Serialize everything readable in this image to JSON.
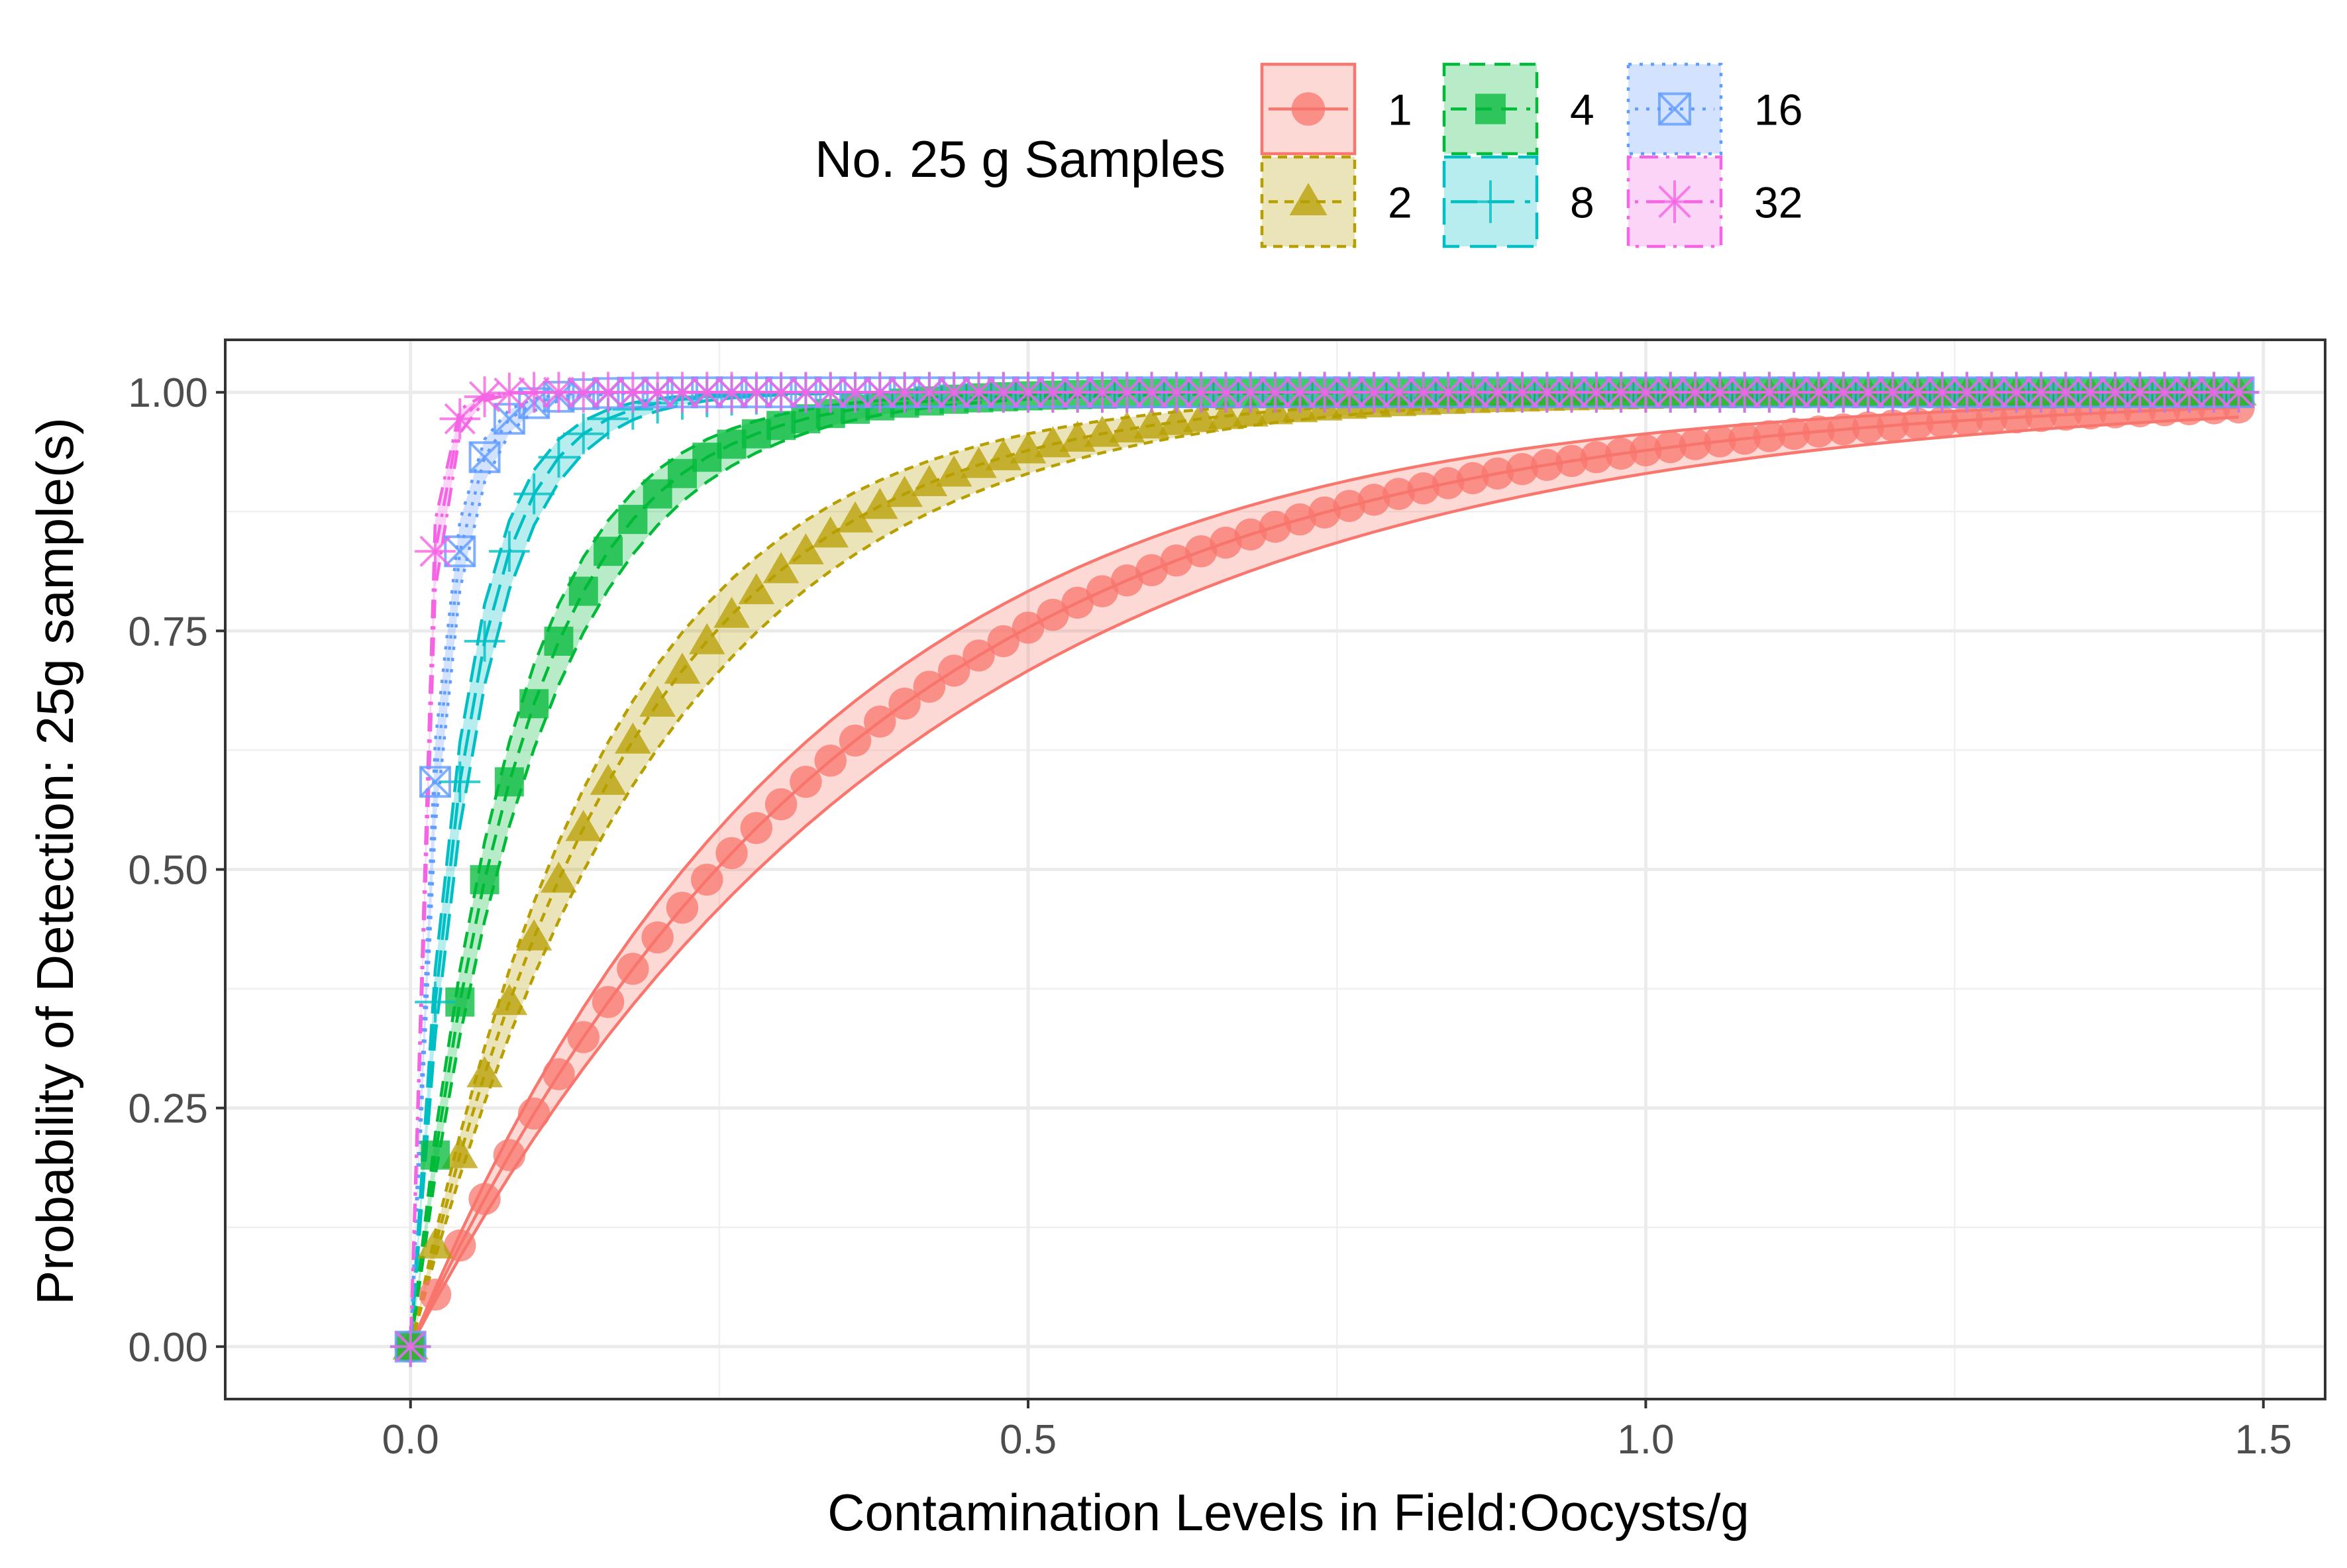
{
  "chart_data": {
    "type": "line",
    "title": "",
    "xlabel": "Contamination Levels in Field:Oocysts/g",
    "ylabel": "Probability of Detection: 25g sample(s)",
    "xlim": [
      -0.15,
      1.55
    ],
    "ylim": [
      -0.055,
      1.055
    ],
    "x_ticks": [
      0.0,
      0.5,
      1.0,
      1.5
    ],
    "x_tick_labels": [
      "0.0",
      "0.5",
      "1.0",
      "1.5"
    ],
    "y_ticks": [
      0.0,
      0.25,
      0.5,
      0.75,
      1.0
    ],
    "y_tick_labels": [
      "0.00",
      "0.25",
      "0.50",
      "0.75",
      "1.00"
    ],
    "grid": true,
    "legend": {
      "title": "No. 25 g Samples",
      "position": "top"
    },
    "x_step": 0.02,
    "x_max": 1.48,
    "ribbon_halfwidth_note": "",
    "series": [
      {
        "name": "1",
        "n": 1,
        "color": "#F8766D",
        "marker": "circle",
        "dash": "solid"
      },
      {
        "name": "2",
        "n": 2,
        "color": "#B79F00",
        "marker": "triangle",
        "dash": "short-dash"
      },
      {
        "name": "4",
        "n": 4,
        "color": "#00BA38",
        "marker": "square",
        "dash": "dash"
      },
      {
        "name": "8",
        "n": 8,
        "color": "#00BFC4",
        "marker": "plus",
        "dash": "long-dash"
      },
      {
        "name": "16",
        "n": 16,
        "color": "#619CFF",
        "marker": "square-cross",
        "dash": "dotted"
      },
      {
        "name": "32",
        "n": 32,
        "color": "#F564E3",
        "marker": "asterisk",
        "dash": "dot-dash"
      }
    ],
    "curve_rate_per_sample": 2.8,
    "band_width_per_series": 0.04
  }
}
